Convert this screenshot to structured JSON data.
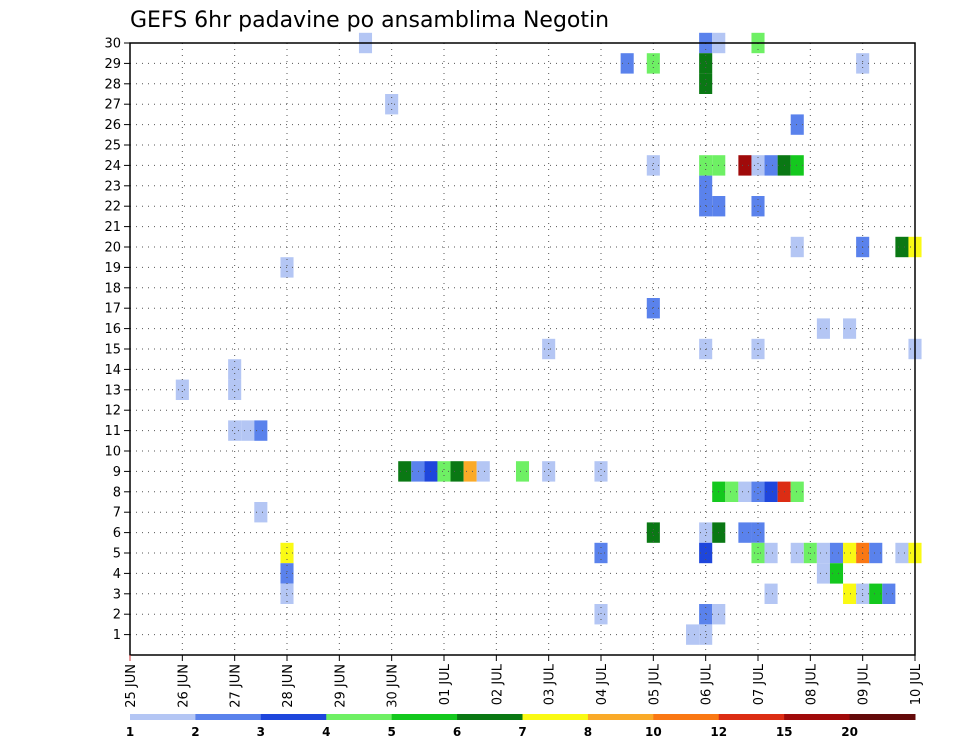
{
  "chart_data": {
    "type": "heatmap",
    "title": "GEFS 6hr padavine po ansamblima Negotin",
    "xlabel": "",
    "ylabel": "",
    "x_ticks": [
      "25 JUN",
      "26 JUN",
      "27 JUN",
      "28 JUN",
      "29 JUN",
      "30 JUN",
      "01 JUL",
      "02 JUL",
      "03 JUL",
      "04 JUL",
      "05 JUL",
      "06 JUL",
      "07 JUL",
      "08 JUL",
      "09 JUL",
      "10 JUL"
    ],
    "x_range_days": [
      0,
      15
    ],
    "y_ticks": [
      1,
      2,
      3,
      4,
      5,
      6,
      7,
      8,
      9,
      10,
      11,
      12,
      13,
      14,
      15,
      16,
      17,
      18,
      19,
      20,
      21,
      22,
      23,
      24,
      25,
      26,
      27,
      28,
      29,
      30
    ],
    "y_range": [
      0,
      30
    ],
    "grid": true,
    "legend": {
      "placement": "bottom",
      "labels": [
        "1",
        "2",
        "3",
        "4",
        "5",
        "6",
        "7",
        "8",
        "10",
        "12",
        "15",
        "20"
      ],
      "colors": [
        "#b4c6f4",
        "#5a82ec",
        "#1e46dc",
        "#6ef064",
        "#14c81e",
        "#0a7814",
        "#fafa14",
        "#faaa28",
        "#fa7814",
        "#dc2d14",
        "#a00a0a",
        "#640a0a"
      ]
    },
    "cells": [
      {
        "t": 4.5,
        "m": 30,
        "c": 0
      },
      {
        "t": 11.0,
        "m": 30,
        "c": 1
      },
      {
        "t": 11.25,
        "m": 30,
        "c": 0
      },
      {
        "t": 12.0,
        "m": 30,
        "c": 3
      },
      {
        "t": 9.5,
        "m": 29,
        "c": 1
      },
      {
        "t": 10.0,
        "m": 29,
        "c": 3
      },
      {
        "t": 11.0,
        "m": 29,
        "c": 5
      },
      {
        "t": 14.0,
        "m": 29,
        "c": 0
      },
      {
        "t": 11.0,
        "m": 28,
        "c": 5
      },
      {
        "t": 5.0,
        "m": 27,
        "c": 0
      },
      {
        "t": 12.75,
        "m": 26,
        "c": 1
      },
      {
        "t": 10.0,
        "m": 24,
        "c": 0
      },
      {
        "t": 11.0,
        "m": 24,
        "c": 3
      },
      {
        "t": 11.25,
        "m": 24,
        "c": 3
      },
      {
        "t": 11.75,
        "m": 24,
        "c": 10
      },
      {
        "t": 12.0,
        "m": 24,
        "c": 0
      },
      {
        "t": 12.25,
        "m": 24,
        "c": 1
      },
      {
        "t": 12.5,
        "m": 24,
        "c": 5
      },
      {
        "t": 12.75,
        "m": 24,
        "c": 4
      },
      {
        "t": 11.0,
        "m": 23,
        "c": 1
      },
      {
        "t": 11.0,
        "m": 22,
        "c": 1
      },
      {
        "t": 11.25,
        "m": 22,
        "c": 1
      },
      {
        "t": 12.0,
        "m": 22,
        "c": 1
      },
      {
        "t": 12.75,
        "m": 20,
        "c": 0
      },
      {
        "t": 14.0,
        "m": 20,
        "c": 1
      },
      {
        "t": 14.75,
        "m": 20,
        "c": 5
      },
      {
        "t": 15.0,
        "m": 20,
        "c": 6
      },
      {
        "t": 3.0,
        "m": 19,
        "c": 0
      },
      {
        "t": 10.0,
        "m": 17,
        "c": 1
      },
      {
        "t": 13.25,
        "m": 16,
        "c": 0
      },
      {
        "t": 13.75,
        "m": 16,
        "c": 0
      },
      {
        "t": 8.0,
        "m": 15,
        "c": 0
      },
      {
        "t": 11.0,
        "m": 15,
        "c": 0
      },
      {
        "t": 12.0,
        "m": 15,
        "c": 0
      },
      {
        "t": 15.0,
        "m": 15,
        "c": 0
      },
      {
        "t": 2.0,
        "m": 14,
        "c": 0
      },
      {
        "t": 1.0,
        "m": 13,
        "c": 0
      },
      {
        "t": 2.0,
        "m": 13,
        "c": 0
      },
      {
        "t": 2.0,
        "m": 11,
        "c": 0
      },
      {
        "t": 2.25,
        "m": 11,
        "c": 0
      },
      {
        "t": 2.5,
        "m": 11,
        "c": 1
      },
      {
        "t": 2.5,
        "m": 7,
        "c": 0
      },
      {
        "t": 5.25,
        "m": 9,
        "c": 5
      },
      {
        "t": 5.5,
        "m": 9,
        "c": 1
      },
      {
        "t": 5.75,
        "m": 9,
        "c": 2
      },
      {
        "t": 6.0,
        "m": 9,
        "c": 3
      },
      {
        "t": 6.25,
        "m": 9,
        "c": 5
      },
      {
        "t": 6.5,
        "m": 9,
        "c": 7
      },
      {
        "t": 6.75,
        "m": 9,
        "c": 0
      },
      {
        "t": 7.5,
        "m": 9,
        "c": 3
      },
      {
        "t": 8.0,
        "m": 9,
        "c": 0
      },
      {
        "t": 9.0,
        "m": 9,
        "c": 0
      },
      {
        "t": 11.25,
        "m": 8,
        "c": 4
      },
      {
        "t": 11.5,
        "m": 8,
        "c": 3
      },
      {
        "t": 11.75,
        "m": 8,
        "c": 0
      },
      {
        "t": 12.0,
        "m": 8,
        "c": 1
      },
      {
        "t": 12.25,
        "m": 8,
        "c": 2
      },
      {
        "t": 12.5,
        "m": 8,
        "c": 9
      },
      {
        "t": 12.75,
        "m": 8,
        "c": 3
      },
      {
        "t": 10.0,
        "m": 6,
        "c": 5
      },
      {
        "t": 11.0,
        "m": 6,
        "c": 0
      },
      {
        "t": 11.25,
        "m": 6,
        "c": 5
      },
      {
        "t": 11.75,
        "m": 6,
        "c": 1
      },
      {
        "t": 12.0,
        "m": 6,
        "c": 1
      },
      {
        "t": 3.0,
        "m": 5,
        "c": 6
      },
      {
        "t": 9.0,
        "m": 5,
        "c": 1
      },
      {
        "t": 11.0,
        "m": 5,
        "c": 2
      },
      {
        "t": 12.0,
        "m": 5,
        "c": 3
      },
      {
        "t": 12.25,
        "m": 5,
        "c": 0
      },
      {
        "t": 12.75,
        "m": 5,
        "c": 0
      },
      {
        "t": 13.0,
        "m": 5,
        "c": 3
      },
      {
        "t": 13.25,
        "m": 5,
        "c": 0
      },
      {
        "t": 13.5,
        "m": 5,
        "c": 1
      },
      {
        "t": 13.75,
        "m": 5,
        "c": 6
      },
      {
        "t": 14.0,
        "m": 5,
        "c": 8
      },
      {
        "t": 14.25,
        "m": 5,
        "c": 1
      },
      {
        "t": 14.75,
        "m": 5,
        "c": 0
      },
      {
        "t": 15.0,
        "m": 5,
        "c": 6
      },
      {
        "t": 3.0,
        "m": 4,
        "c": 1
      },
      {
        "t": 13.25,
        "m": 4,
        "c": 0
      },
      {
        "t": 13.5,
        "m": 4,
        "c": 4
      },
      {
        "t": 3.0,
        "m": 3,
        "c": 0
      },
      {
        "t": 12.25,
        "m": 3,
        "c": 0
      },
      {
        "t": 13.75,
        "m": 3,
        "c": 6
      },
      {
        "t": 14.0,
        "m": 3,
        "c": 0
      },
      {
        "t": 14.25,
        "m": 3,
        "c": 4
      },
      {
        "t": 14.5,
        "m": 3,
        "c": 1
      },
      {
        "t": 9.0,
        "m": 2,
        "c": 0
      },
      {
        "t": 11.0,
        "m": 2,
        "c": 1
      },
      {
        "t": 11.25,
        "m": 2,
        "c": 0
      },
      {
        "t": 10.75,
        "m": 1,
        "c": 0
      },
      {
        "t": 11.0,
        "m": 1,
        "c": 0
      }
    ]
  }
}
